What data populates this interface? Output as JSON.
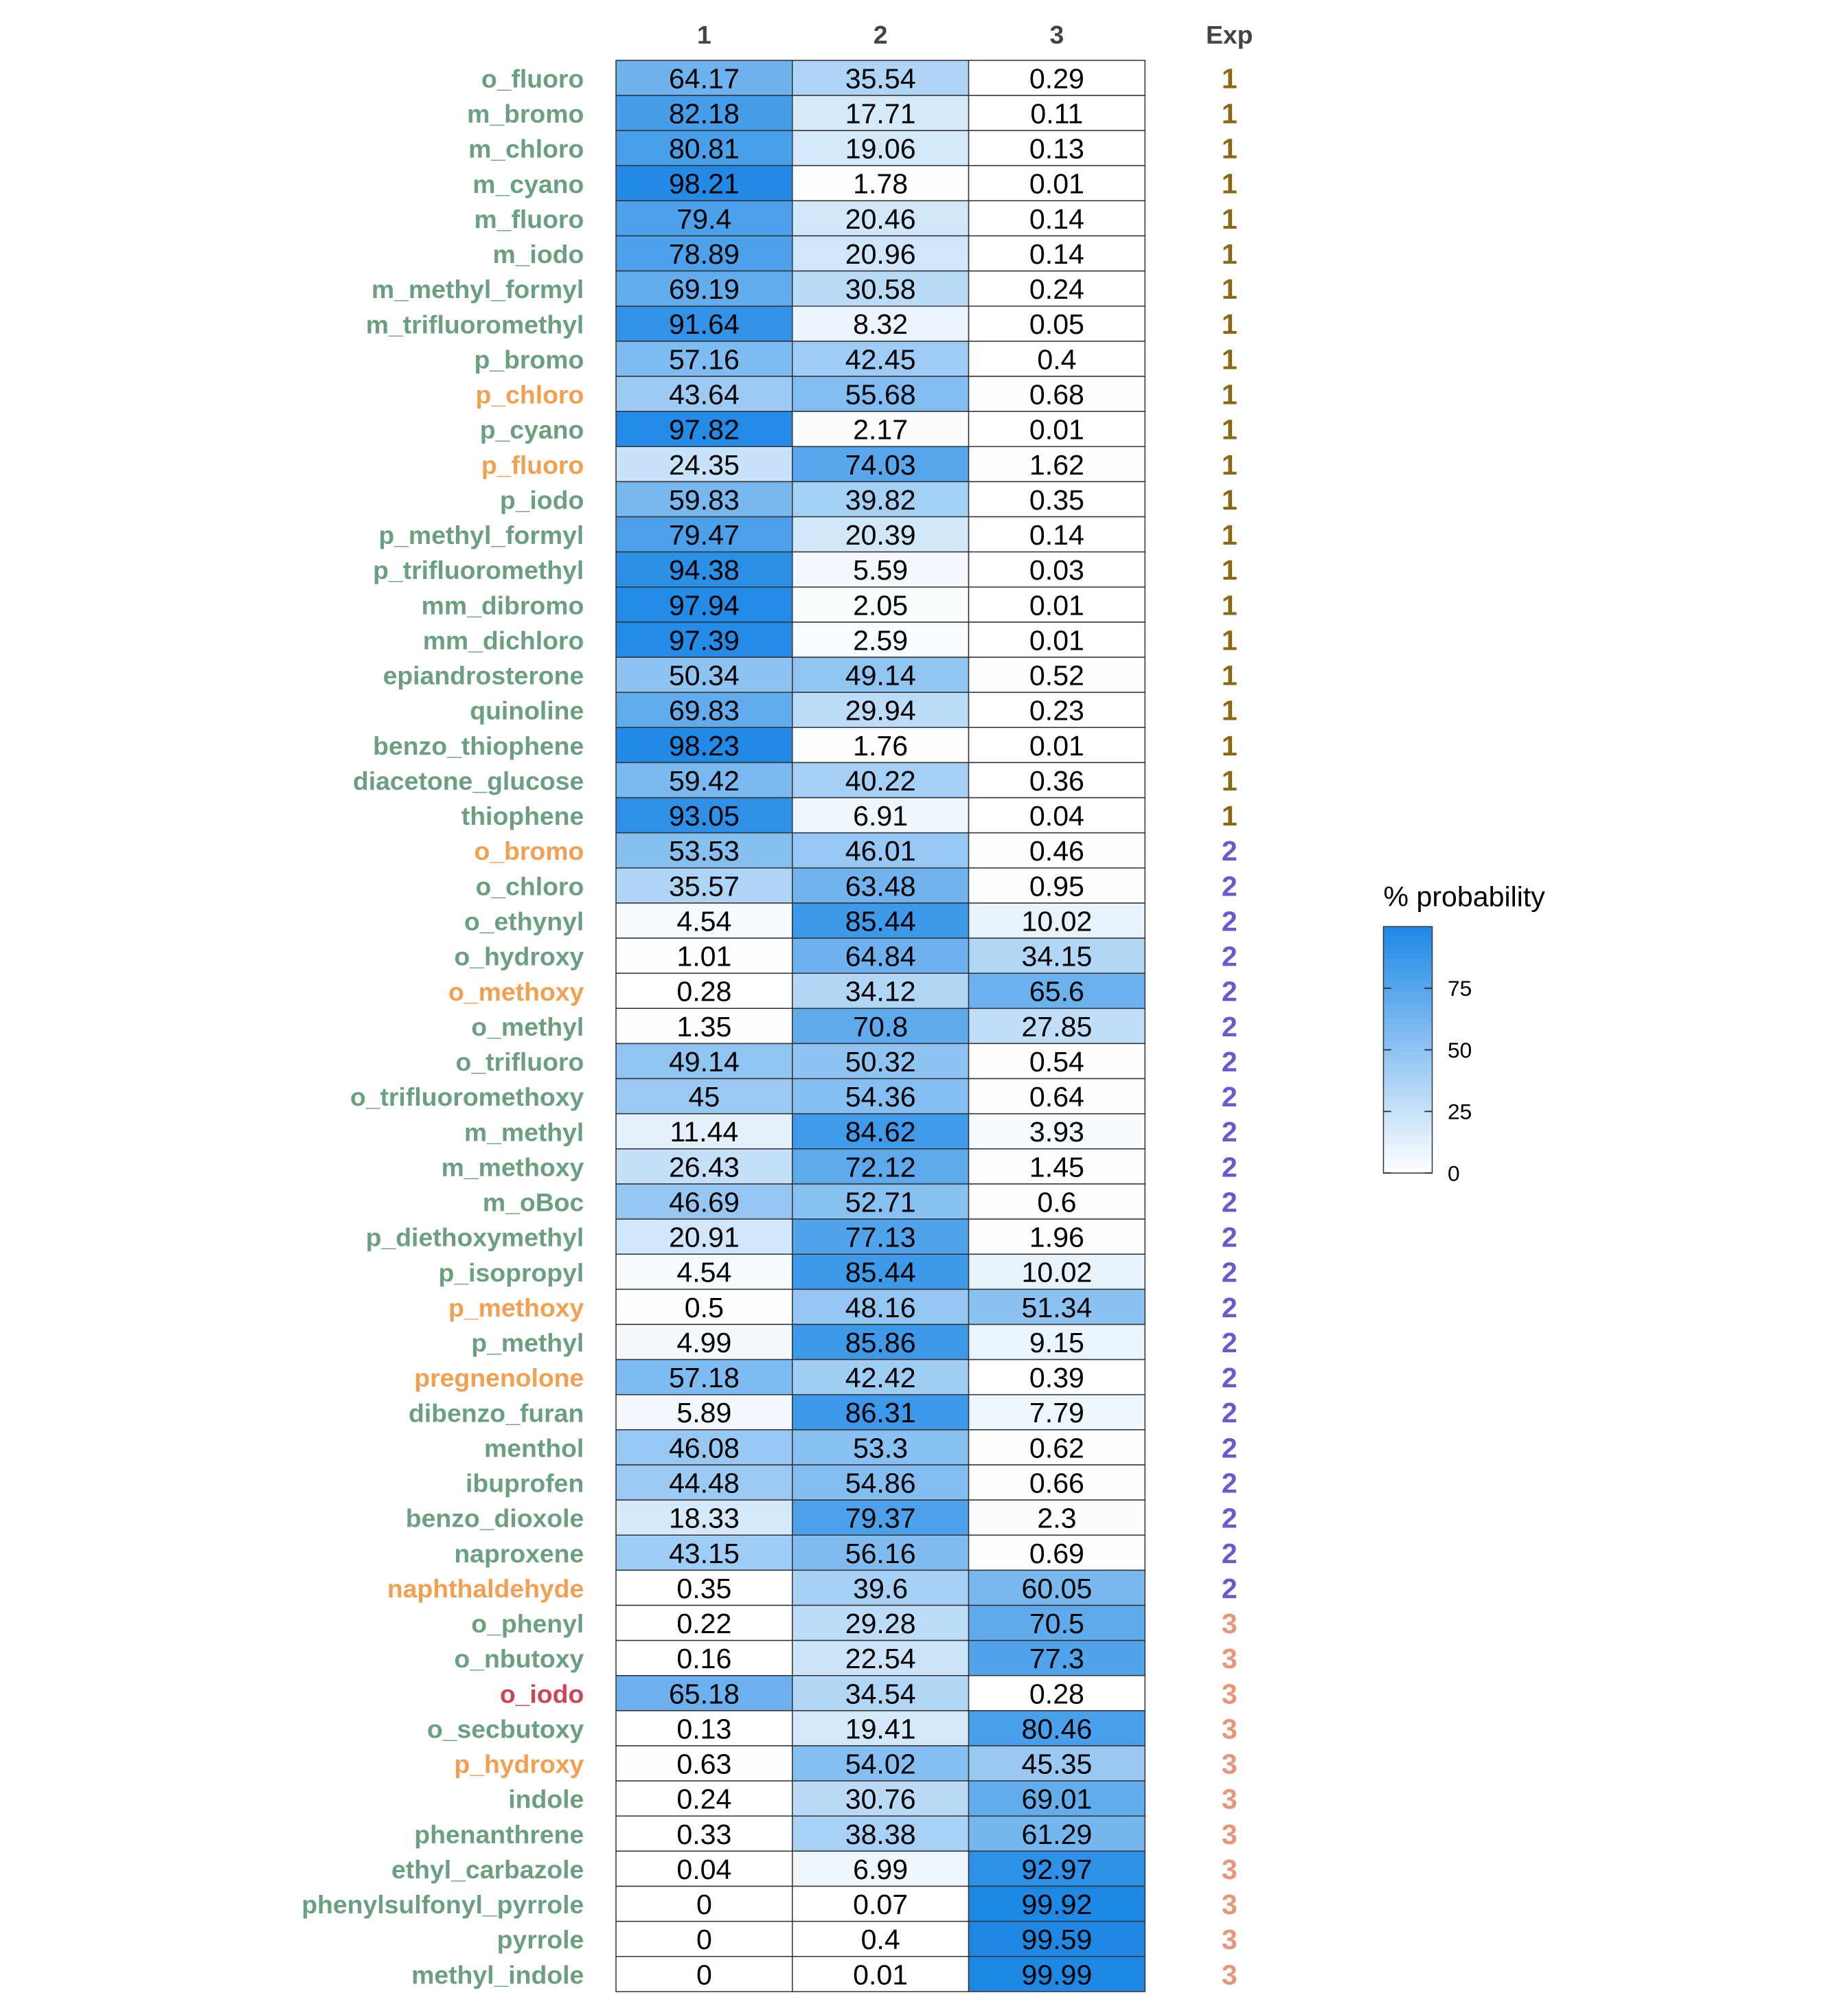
{
  "chart_data": {
    "type": "heatmap",
    "columns": [
      "1",
      "2",
      "3"
    ],
    "exp_header": "Exp",
    "rows": [
      {
        "label": "o_fluoro",
        "values": [
          64.17,
          35.54,
          0.29
        ],
        "exp": "1",
        "label_color": "#6A9F80"
      },
      {
        "label": "m_bromo",
        "values": [
          82.18,
          17.71,
          0.11
        ],
        "exp": "1",
        "label_color": "#6A9F80"
      },
      {
        "label": "m_chloro",
        "values": [
          80.81,
          19.06,
          0.13
        ],
        "exp": "1",
        "label_color": "#6A9F80"
      },
      {
        "label": "m_cyano",
        "values": [
          98.21,
          1.78,
          0.01
        ],
        "exp": "1",
        "label_color": "#6A9F80"
      },
      {
        "label": "m_fluoro",
        "values": [
          79.4,
          20.46,
          0.14
        ],
        "exp": "1",
        "label_color": "#6A9F80"
      },
      {
        "label": "m_iodo",
        "values": [
          78.89,
          20.96,
          0.14
        ],
        "exp": "1",
        "label_color": "#6A9F80"
      },
      {
        "label": "m_methyl_formyl",
        "values": [
          69.19,
          30.58,
          0.24
        ],
        "exp": "1",
        "label_color": "#6A9F80"
      },
      {
        "label": "m_trifluoromethyl",
        "values": [
          91.64,
          8.32,
          0.05
        ],
        "exp": "1",
        "label_color": "#6A9F80"
      },
      {
        "label": "p_bromo",
        "values": [
          57.16,
          42.45,
          0.4
        ],
        "exp": "1",
        "label_color": "#6A9F80"
      },
      {
        "label": "p_chloro",
        "values": [
          43.64,
          55.68,
          0.68
        ],
        "exp": "1",
        "label_color": "#F0A050"
      },
      {
        "label": "p_cyano",
        "values": [
          97.82,
          2.17,
          0.01
        ],
        "exp": "1",
        "label_color": "#6A9F80"
      },
      {
        "label": "p_fluoro",
        "values": [
          24.35,
          74.03,
          1.62
        ],
        "exp": "1",
        "label_color": "#F0A050"
      },
      {
        "label": "p_iodo",
        "values": [
          59.83,
          39.82,
          0.35
        ],
        "exp": "1",
        "label_color": "#6A9F80"
      },
      {
        "label": "p_methyl_formyl",
        "values": [
          79.47,
          20.39,
          0.14
        ],
        "exp": "1",
        "label_color": "#6A9F80"
      },
      {
        "label": "p_trifluoromethyl",
        "values": [
          94.38,
          5.59,
          0.03
        ],
        "exp": "1",
        "label_color": "#6A9F80"
      },
      {
        "label": "mm_dibromo",
        "values": [
          97.94,
          2.05,
          0.01
        ],
        "exp": "1",
        "label_color": "#6A9F80"
      },
      {
        "label": "mm_dichloro",
        "values": [
          97.39,
          2.59,
          0.01
        ],
        "exp": "1",
        "label_color": "#6A9F80"
      },
      {
        "label": "epiandrosterone",
        "values": [
          50.34,
          49.14,
          0.52
        ],
        "exp": "1",
        "label_color": "#6A9F80"
      },
      {
        "label": "quinoline",
        "values": [
          69.83,
          29.94,
          0.23
        ],
        "exp": "1",
        "label_color": "#6A9F80"
      },
      {
        "label": "benzo_thiophene",
        "values": [
          98.23,
          1.76,
          0.01
        ],
        "exp": "1",
        "label_color": "#6A9F80"
      },
      {
        "label": "diacetone_glucose",
        "values": [
          59.42,
          40.22,
          0.36
        ],
        "exp": "1",
        "label_color": "#6A9F80"
      },
      {
        "label": "thiophene",
        "values": [
          93.05,
          6.91,
          0.04
        ],
        "exp": "1",
        "label_color": "#6A9F80"
      },
      {
        "label": "o_bromo",
        "values": [
          53.53,
          46.01,
          0.46
        ],
        "exp": "2",
        "label_color": "#F0A050"
      },
      {
        "label": "o_chloro",
        "values": [
          35.57,
          63.48,
          0.95
        ],
        "exp": "2",
        "label_color": "#6A9F80"
      },
      {
        "label": "o_ethynyl",
        "values": [
          4.54,
          85.44,
          10.02
        ],
        "exp": "2",
        "label_color": "#6A9F80"
      },
      {
        "label": "o_hydroxy",
        "values": [
          1.01,
          64.84,
          34.15
        ],
        "exp": "2",
        "label_color": "#6A9F80"
      },
      {
        "label": "o_methoxy",
        "values": [
          0.28,
          34.12,
          65.6
        ],
        "exp": "2",
        "label_color": "#F0A050"
      },
      {
        "label": "o_methyl",
        "values": [
          1.35,
          70.8,
          27.85
        ],
        "exp": "2",
        "label_color": "#6A9F80"
      },
      {
        "label": "o_trifluoro",
        "values": [
          49.14,
          50.32,
          0.54
        ],
        "exp": "2",
        "label_color": "#6A9F80"
      },
      {
        "label": "o_trifluoromethoxy",
        "values": [
          45,
          54.36,
          0.64
        ],
        "exp": "2",
        "label_color": "#6A9F80"
      },
      {
        "label": "m_methyl",
        "values": [
          11.44,
          84.62,
          3.93
        ],
        "exp": "2",
        "label_color": "#6A9F80"
      },
      {
        "label": "m_methoxy",
        "values": [
          26.43,
          72.12,
          1.45
        ],
        "exp": "2",
        "label_color": "#6A9F80"
      },
      {
        "label": "m_oBoc",
        "values": [
          46.69,
          52.71,
          0.6
        ],
        "exp": "2",
        "label_color": "#6A9F80"
      },
      {
        "label": "p_diethoxymethyl",
        "values": [
          20.91,
          77.13,
          1.96
        ],
        "exp": "2",
        "label_color": "#6A9F80"
      },
      {
        "label": "p_isopropyl",
        "values": [
          4.54,
          85.44,
          10.02
        ],
        "exp": "2",
        "label_color": "#6A9F80"
      },
      {
        "label": "p_methoxy",
        "values": [
          0.5,
          48.16,
          51.34
        ],
        "exp": "2",
        "label_color": "#F0A050"
      },
      {
        "label": "p_methyl",
        "values": [
          4.99,
          85.86,
          9.15
        ],
        "exp": "2",
        "label_color": "#6A9F80"
      },
      {
        "label": "pregnenolone",
        "values": [
          57.18,
          42.42,
          0.39
        ],
        "exp": "2",
        "label_color": "#F0A050"
      },
      {
        "label": "dibenzo_furan",
        "values": [
          5.89,
          86.31,
          7.79
        ],
        "exp": "2",
        "label_color": "#6A9F80"
      },
      {
        "label": "menthol",
        "values": [
          46.08,
          53.3,
          0.62
        ],
        "exp": "2",
        "label_color": "#6A9F80"
      },
      {
        "label": "ibuprofen",
        "values": [
          44.48,
          54.86,
          0.66
        ],
        "exp": "2",
        "label_color": "#6A9F80"
      },
      {
        "label": "benzo_dioxole",
        "values": [
          18.33,
          79.37,
          2.3
        ],
        "exp": "2",
        "label_color": "#6A9F80"
      },
      {
        "label": "naproxene",
        "values": [
          43.15,
          56.16,
          0.69
        ],
        "exp": "2",
        "label_color": "#6A9F80"
      },
      {
        "label": "naphthaldehyde",
        "values": [
          0.35,
          39.6,
          60.05
        ],
        "exp": "2",
        "label_color": "#F0A050"
      },
      {
        "label": "o_phenyl",
        "values": [
          0.22,
          29.28,
          70.5
        ],
        "exp": "3",
        "label_color": "#6A9F80"
      },
      {
        "label": "o_nbutoxy",
        "values": [
          0.16,
          22.54,
          77.3
        ],
        "exp": "3",
        "label_color": "#6A9F80"
      },
      {
        "label": "o_iodo",
        "values": [
          65.18,
          34.54,
          0.28
        ],
        "exp": "3",
        "label_color": "#CC4455"
      },
      {
        "label": "o_secbutoxy",
        "values": [
          0.13,
          19.41,
          80.46
        ],
        "exp": "3",
        "label_color": "#6A9F80"
      },
      {
        "label": "p_hydroxy",
        "values": [
          0.63,
          54.02,
          45.35
        ],
        "exp": "3",
        "label_color": "#F0A050"
      },
      {
        "label": "indole",
        "values": [
          0.24,
          30.76,
          69.01
        ],
        "exp": "3",
        "label_color": "#6A9F80"
      },
      {
        "label": "phenanthrene",
        "values": [
          0.33,
          38.38,
          61.29
        ],
        "exp": "3",
        "label_color": "#6A9F80"
      },
      {
        "label": "ethyl_carbazole",
        "values": [
          0.04,
          6.99,
          92.97
        ],
        "exp": "3",
        "label_color": "#6A9F80"
      },
      {
        "label": "phenylsulfonyl_pyrrole",
        "values": [
          0,
          0.07,
          99.92
        ],
        "exp": "3",
        "label_color": "#6A9F80"
      },
      {
        "label": "pyrrole",
        "values": [
          0,
          0.4,
          99.59
        ],
        "exp": "3",
        "label_color": "#6A9F80"
      },
      {
        "label": "methyl_indole",
        "values": [
          0,
          0.01,
          99.99
        ],
        "exp": "3",
        "label_color": "#6A9F80"
      }
    ],
    "exp_colors": {
      "1": "#8B6914",
      "2": "#6A5ACD",
      "3": "#E8967A"
    },
    "color_scale": {
      "low": "#FFFFFF",
      "high": "#1E88E5",
      "min": 0,
      "max": 100
    },
    "legend": {
      "title": "% probability",
      "ticks": [
        "0",
        "25",
        "50",
        "75"
      ],
      "tick_values": [
        0,
        25,
        50,
        75
      ],
      "placement": "right"
    }
  }
}
